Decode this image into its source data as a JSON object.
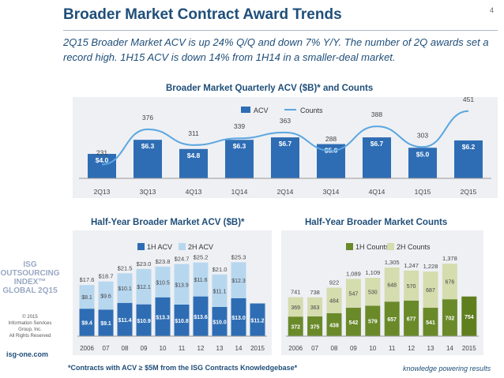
{
  "page": {
    "number": "4",
    "title": "Broader Market Contract Award Trends",
    "subtitle": "2Q15 Broader Market ACV is up 24% Q/Q and down 7% Y/Y. The number of 2Q awards set a record high. 1H15 ACV is down 14% from 1H14 in a smaller-deal market.",
    "footnote": "*Contracts with ACV ≥ $5M from the ISG Contracts Knowledgebase*",
    "tagline": "knowledge powering results",
    "website": "isg-one.com",
    "logo_lines": [
      "ISG",
      "OUTSOURCING",
      "INDEX™",
      "GLOBAL 2Q15"
    ],
    "copyright_lines": [
      "© 2015",
      "Information Services",
      "Group, Inc.",
      "All Rights Reserved"
    ]
  },
  "colors": {
    "navy": "#1f4e79",
    "bar_blue": "#2e6db4",
    "line_blue": "#5aa6e0",
    "light_blue": "#b7d7ef",
    "green_dark": "#6a8a2a",
    "green_light": "#d5dcae",
    "last_green": "#5f7f1e"
  },
  "chart_data": [
    {
      "type": "bar",
      "title": "Broader Market Quarterly ACV ($B)* and Counts",
      "categories": [
        "2Q13",
        "3Q13",
        "4Q13",
        "1Q14",
        "2Q14",
        "3Q14",
        "4Q14",
        "1Q15",
        "2Q15"
      ],
      "series": [
        {
          "name": "ACV",
          "type": "bar",
          "values": [
            4.0,
            6.3,
            4.8,
            6.3,
            6.7,
            5.6,
            6.7,
            5.0,
            6.2
          ],
          "labels": [
            "$4.0",
            "$6.3",
            "$4.8",
            "$6.3",
            "$6.7",
            "$5.6",
            "$6.7",
            "$5.0",
            "$6.2"
          ]
        },
        {
          "name": "Counts",
          "type": "line",
          "values": [
            231,
            376,
            311,
            339,
            363,
            288,
            388,
            303,
            451
          ]
        }
      ],
      "legend": "top-center",
      "grid": false
    },
    {
      "type": "bar",
      "stacked": true,
      "title": "Half-Year Broader Market ACV ($B)*",
      "categories": [
        "2006",
        "07",
        "08",
        "09",
        "10",
        "11",
        "12",
        "13",
        "14",
        "2015"
      ],
      "series": [
        {
          "name": "1H ACV",
          "values": [
            9.4,
            9.1,
            11.4,
            10.9,
            13.3,
            10.8,
            13.6,
            10.0,
            13.0,
            11.2
          ],
          "labels": [
            "$9.4",
            "$9.1",
            "$11.4",
            "$10.9",
            "$13.3",
            "$10.8",
            "$13.6",
            "$10.0",
            "$13.0",
            "$11.2"
          ]
        },
        {
          "name": "2H ACV",
          "values": [
            8.1,
            9.6,
            10.1,
            12.1,
            10.5,
            13.9,
            11.6,
            11.1,
            12.3,
            null
          ],
          "labels": [
            "$8.1",
            "$9.6",
            "$10.1",
            "$12.1",
            "$10.5",
            "$13.9",
            "$11.6",
            "$11.1",
            "$12.3",
            ""
          ]
        }
      ],
      "totals": [
        "$17.6",
        "$18.7",
        "$21.5",
        "$23.0",
        "$23.8",
        "$24.7",
        "$25.2",
        "$21.0",
        "$25.3",
        ""
      ],
      "legend": "top-left",
      "grid": false
    },
    {
      "type": "bar",
      "stacked": true,
      "title": "Half-Year Broader Market Counts",
      "categories": [
        "2006",
        "07",
        "08",
        "09",
        "10",
        "11",
        "12",
        "13",
        "14",
        "2015"
      ],
      "series": [
        {
          "name": "1H Counts",
          "values": [
            372,
            375,
            438,
            542,
            579,
            657,
            677,
            541,
            702,
            754
          ],
          "labels": [
            "372",
            "375",
            "438",
            "542",
            "579",
            "657",
            "677",
            "541",
            "702",
            "754"
          ]
        },
        {
          "name": "2H Counts",
          "values": [
            369,
            363,
            484,
            547,
            530,
            648,
            570,
            687,
            676,
            null
          ],
          "labels": [
            "369",
            "363",
            "484",
            "547",
            "530",
            "648",
            "570",
            "687",
            "676",
            ""
          ]
        }
      ],
      "totals": [
        "741",
        "738",
        "922",
        "1,089",
        "1,109",
        "1,305",
        "1,247",
        "1,228",
        "1,378",
        ""
      ],
      "legend": "top-left",
      "grid": false
    }
  ]
}
